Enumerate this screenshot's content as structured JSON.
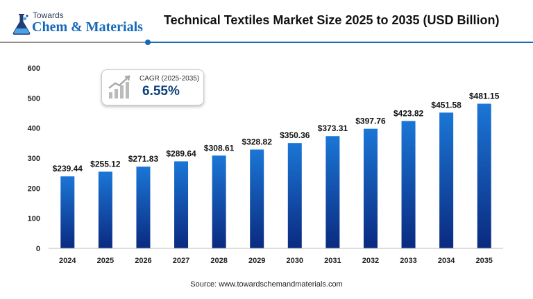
{
  "logo": {
    "towards": "Towards",
    "name": "Chem & Materials"
  },
  "title": "Technical Textiles Market Size 2025 to 2035 (USD Billion)",
  "cagr": {
    "label": "CAGR (2025-2035)",
    "value": "6.55%"
  },
  "source": "Source: www.towardschemandmaterials.com",
  "colors": {
    "bar_top": "#1b76d6",
    "bar_bottom": "#0a2a80",
    "accent": "#1569b8"
  },
  "icons": [
    "flask-logo-icon",
    "growth-chart-icon"
  ],
  "chart_data": {
    "type": "bar",
    "title": "Technical Textiles Market Size 2025 to 2035 (USD Billion)",
    "categories": [
      "2024",
      "2025",
      "2026",
      "2027",
      "2028",
      "2029",
      "2030",
      "2031",
      "2032",
      "2033",
      "2034",
      "2035"
    ],
    "values": [
      239.44,
      255.12,
      271.83,
      289.64,
      308.61,
      328.82,
      350.36,
      373.31,
      397.76,
      423.82,
      451.58,
      481.15
    ],
    "labels": [
      "$239.44",
      "$255.12",
      "$271.83",
      "$289.64",
      "$308.61",
      "$328.82",
      "$350.36",
      "$373.31",
      "$397.76",
      "$423.82",
      "$451.58",
      "$481.15"
    ],
    "yticks": [
      "0",
      "100",
      "200",
      "300",
      "400",
      "500",
      "600"
    ],
    "ylim": [
      0,
      600
    ],
    "grid": false,
    "legend": "none"
  }
}
